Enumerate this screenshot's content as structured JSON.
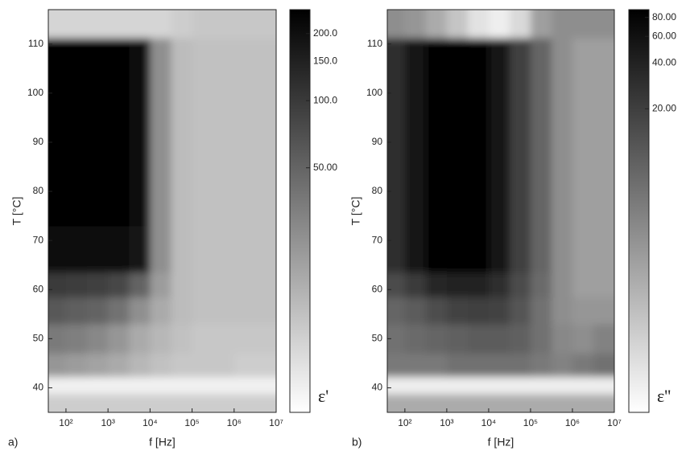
{
  "chart_data": [
    {
      "type": "heatmap",
      "panel_label": "a)",
      "xlabel": "f [Hz]",
      "ylabel": "T [°C]",
      "colorbar_label": "ε'",
      "xscale": "log",
      "zscale": "log",
      "xlim": [
        38,
        10000000
      ],
      "ylim": [
        35,
        117
      ],
      "zlim": [
        4,
        256
      ],
      "xticks": [
        {
          "value": 100,
          "label": "10²"
        },
        {
          "value": 1000,
          "label": "10³"
        },
        {
          "value": 10000,
          "label": "10⁴"
        },
        {
          "value": 100000,
          "label": "10⁵"
        },
        {
          "value": 1000000,
          "label": "10⁶"
        },
        {
          "value": 10000000,
          "label": "10⁷"
        }
      ],
      "yticks": [
        40,
        50,
        60,
        70,
        80,
        90,
        100,
        110
      ],
      "zticks": [
        {
          "value": 50,
          "label": "50.00"
        },
        {
          "value": 100,
          "label": "100.0"
        },
        {
          "value": 150,
          "label": "150.0"
        },
        {
          "value": 200,
          "label": "200.0"
        }
      ],
      "x": [
        56,
        178,
        562,
        1778,
        5623,
        17783,
        56234,
        177828,
        562341,
        1778279,
        5623413
      ],
      "y": [
        37,
        40.5,
        44,
        50,
        56,
        61,
        66,
        80,
        95,
        108,
        114.5
      ],
      "z": [
        [
          9,
          9,
          9,
          9,
          9,
          9,
          9,
          9,
          9,
          9,
          9
        ],
        [
          5,
          5,
          5,
          5,
          5,
          5,
          5,
          5,
          5,
          5,
          5
        ],
        [
          22,
          20,
          18,
          16,
          13,
          11,
          10,
          10,
          10,
          9,
          9
        ],
        [
          35,
          32,
          28,
          22,
          16,
          13,
          11,
          10,
          10,
          10,
          10
        ],
        [
          60,
          55,
          50,
          40,
          25,
          16,
          12,
          11,
          11,
          11,
          11
        ],
        [
          100,
          95,
          90,
          80,
          50,
          20,
          12,
          11,
          11,
          11,
          11
        ],
        [
          230,
          230,
          230,
          225,
          180,
          25,
          12,
          11,
          11,
          11,
          11
        ],
        [
          240,
          240,
          240,
          235,
          200,
          25,
          12,
          11,
          11,
          11,
          11
        ],
        [
          240,
          240,
          240,
          235,
          200,
          25,
          12,
          11,
          11,
          11,
          11
        ],
        [
          240,
          240,
          240,
          235,
          200,
          25,
          12,
          11,
          11,
          11,
          11
        ],
        [
          8,
          8,
          8,
          8,
          8,
          8,
          9,
          10,
          10,
          10,
          10
        ]
      ]
    },
    {
      "type": "heatmap",
      "panel_label": "b)",
      "xlabel": "f [Hz]",
      "ylabel": "T [°C]",
      "colorbar_label": "ε''",
      "xscale": "log",
      "zscale": "log",
      "xlim": [
        38,
        10000000
      ],
      "ylim": [
        35,
        117
      ],
      "zlim": [
        0.2,
        90
      ],
      "xticks": [
        {
          "value": 100,
          "label": "10²"
        },
        {
          "value": 1000,
          "label": "10³"
        },
        {
          "value": 10000,
          "label": "10⁴"
        },
        {
          "value": 100000,
          "label": "10⁵"
        },
        {
          "value": 1000000,
          "label": "10⁶"
        },
        {
          "value": 10000000,
          "label": "10⁷"
        }
      ],
      "yticks": [
        40,
        50,
        60,
        70,
        80,
        90,
        100,
        110
      ],
      "zticks": [
        {
          "value": 20,
          "label": "20.00"
        },
        {
          "value": 40,
          "label": "40.00"
        },
        {
          "value": 60,
          "label": "60.00"
        },
        {
          "value": 80,
          "label": "80.00"
        }
      ],
      "x": [
        56,
        178,
        562,
        1778,
        5623,
        17783,
        56234,
        177828,
        562341,
        1778279,
        5623413
      ],
      "y": [
        37,
        40.5,
        44,
        50,
        56,
        61,
        66,
        80,
        95,
        108,
        114.5
      ],
      "z": [
        [
          1.5,
          1.5,
          1.5,
          1.5,
          1.5,
          1.5,
          1.5,
          1.5,
          1.5,
          1.5,
          1.5
        ],
        [
          0.3,
          0.3,
          0.3,
          0.3,
          0.3,
          0.3,
          0.3,
          0.3,
          0.3,
          0.3,
          0.3
        ],
        [
          5,
          5,
          5,
          6,
          6,
          6,
          6,
          5,
          4,
          5,
          6
        ],
        [
          6,
          7,
          8,
          9,
          10,
          10,
          9,
          6,
          3.5,
          3,
          4
        ],
        [
          8,
          10,
          14,
          18,
          20,
          18,
          12,
          6,
          3,
          2.5,
          2.5
        ],
        [
          15,
          22,
          35,
          40,
          40,
          30,
          15,
          7,
          3,
          2,
          2
        ],
        [
          30,
          50,
          80,
          85,
          80,
          50,
          20,
          8,
          3,
          2,
          2
        ],
        [
          30,
          50,
          80,
          85,
          80,
          50,
          20,
          8,
          3,
          2,
          2
        ],
        [
          30,
          50,
          80,
          85,
          80,
          50,
          20,
          8,
          3,
          2,
          2
        ],
        [
          30,
          50,
          80,
          85,
          80,
          50,
          20,
          8,
          3,
          2,
          2
        ],
        [
          3,
          2.5,
          1.5,
          0.8,
          0.4,
          0.3,
          0.5,
          2,
          3,
          3,
          3
        ]
      ]
    }
  ]
}
